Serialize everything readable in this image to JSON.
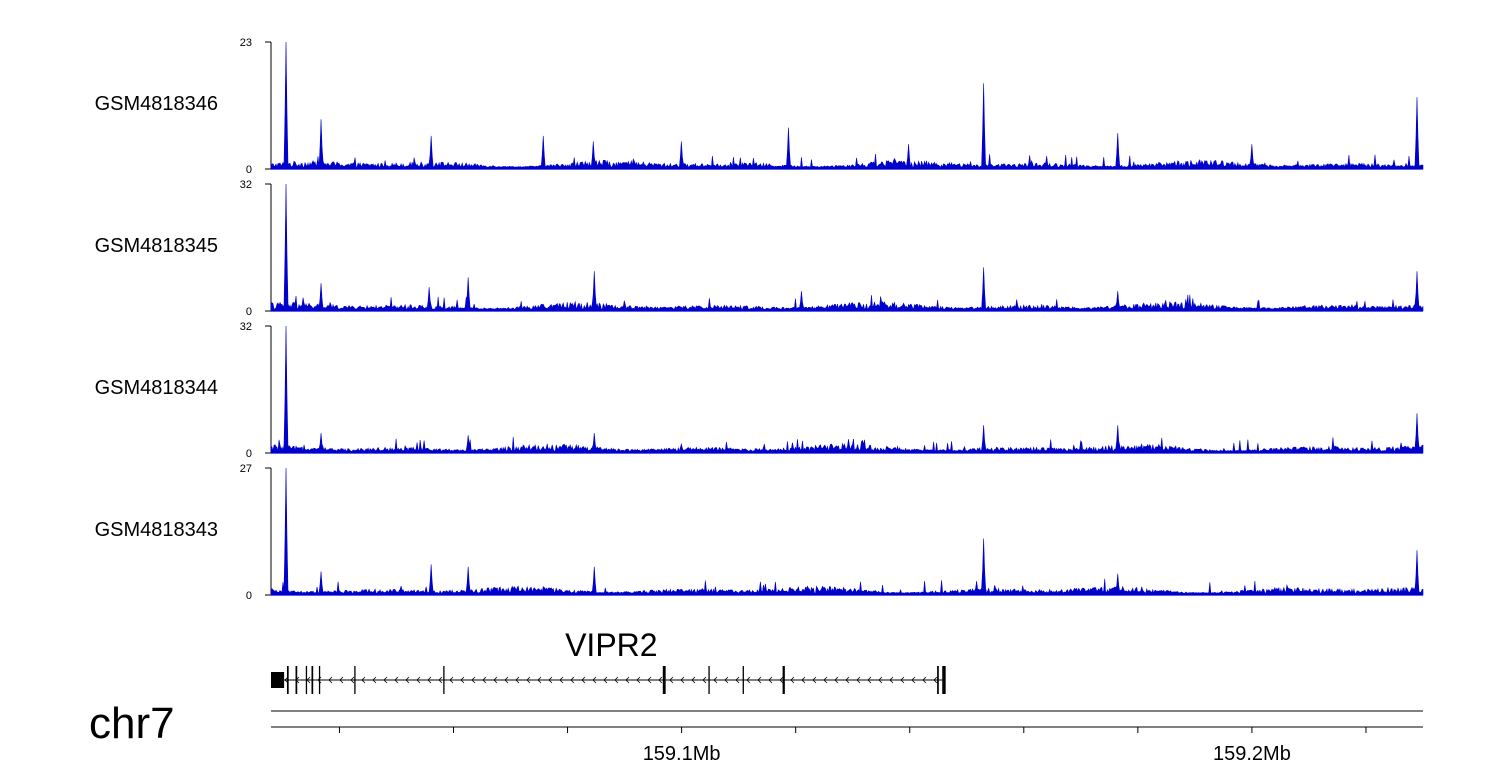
{
  "chart_data": {
    "type": "area",
    "title": "",
    "chromosome": "chr7",
    "x_range_mb": [
      159.028,
      159.23
    ],
    "x_axis": {
      "ticks_mb": [
        159.04,
        159.06,
        159.08,
        159.1,
        159.12,
        159.14,
        159.16,
        159.18,
        159.2,
        159.22
      ],
      "labels": [
        {
          "value_mb": 159.1,
          "label": "159.1Mb"
        },
        {
          "value_mb": 159.2,
          "label": "159.2Mb"
        }
      ]
    },
    "color": "#0000cc",
    "series": [
      {
        "name": "GSM4818346",
        "ymin_label": "0",
        "ymax_label": "23",
        "ylim": [
          0,
          23
        ],
        "peaks": [
          {
            "x": 159.0307,
            "y": 23
          },
          {
            "x": 159.0368,
            "y": 9
          },
          {
            "x": 159.056,
            "y": 6
          },
          {
            "x": 159.0758,
            "y": 6
          },
          {
            "x": 159.0845,
            "y": 5
          },
          {
            "x": 159.1,
            "y": 5
          },
          {
            "x": 159.1187,
            "y": 7.5
          },
          {
            "x": 159.1398,
            "y": 4.5
          },
          {
            "x": 159.153,
            "y": 15.5
          },
          {
            "x": 159.1765,
            "y": 6.5
          },
          {
            "x": 159.2,
            "y": 4.5
          },
          {
            "x": 159.229,
            "y": 13
          }
        ]
      },
      {
        "name": "GSM4818345",
        "ymin_label": "0",
        "ymax_label": "32",
        "ylim": [
          0,
          32
        ],
        "peaks": [
          {
            "x": 159.0307,
            "y": 32
          },
          {
            "x": 159.0368,
            "y": 7
          },
          {
            "x": 159.0558,
            "y": 6
          },
          {
            "x": 159.0625,
            "y": 8.5
          },
          {
            "x": 159.0847,
            "y": 10
          },
          {
            "x": 159.121,
            "y": 5
          },
          {
            "x": 159.153,
            "y": 11
          },
          {
            "x": 159.1765,
            "y": 5
          },
          {
            "x": 159.229,
            "y": 10
          }
        ]
      },
      {
        "name": "GSM4818344",
        "ymin_label": "0",
        "ymax_label": "32",
        "ylim": [
          0,
          32
        ],
        "peaks": [
          {
            "x": 159.0307,
            "y": 32
          },
          {
            "x": 159.0368,
            "y": 5
          },
          {
            "x": 159.0625,
            "y": 4.5
          },
          {
            "x": 159.0847,
            "y": 5
          },
          {
            "x": 159.153,
            "y": 7
          },
          {
            "x": 159.1765,
            "y": 7
          },
          {
            "x": 159.229,
            "y": 10
          }
        ]
      },
      {
        "name": "GSM4818343",
        "ymin_label": "0",
        "ymax_label": "27",
        "ylim": [
          0,
          27
        ],
        "peaks": [
          {
            "x": 159.0307,
            "y": 27
          },
          {
            "x": 159.0368,
            "y": 5
          },
          {
            "x": 159.056,
            "y": 6.5
          },
          {
            "x": 159.0625,
            "y": 6
          },
          {
            "x": 159.0847,
            "y": 6
          },
          {
            "x": 159.153,
            "y": 12
          },
          {
            "x": 159.1765,
            "y": 4.5
          },
          {
            "x": 159.229,
            "y": 9.5
          }
        ]
      }
    ],
    "genes": [
      {
        "name": "VIPR2",
        "start_mb": 159.028,
        "end_mb": 159.1463,
        "strand": "-",
        "exons_mb": [
          {
            "start": 159.028,
            "end": 159.0303
          },
          {
            "start": 159.0308,
            "end": 159.0311
          },
          {
            "start": 159.0323,
            "end": 159.0326
          },
          {
            "start": 159.0341,
            "end": 159.0343
          },
          {
            "start": 159.0351,
            "end": 159.0354
          },
          {
            "start": 159.0364,
            "end": 159.0366
          },
          {
            "start": 159.0426,
            "end": 159.0428
          },
          {
            "start": 159.0582,
            "end": 159.0584
          },
          {
            "start": 159.0967,
            "end": 159.0972
          },
          {
            "start": 159.1047,
            "end": 159.1049
          },
          {
            "start": 159.1107,
            "end": 159.1109
          },
          {
            "start": 159.1177,
            "end": 159.1181
          },
          {
            "start": 159.1448,
            "end": 159.1451
          },
          {
            "start": 159.1457,
            "end": 159.1463
          }
        ]
      }
    ]
  }
}
